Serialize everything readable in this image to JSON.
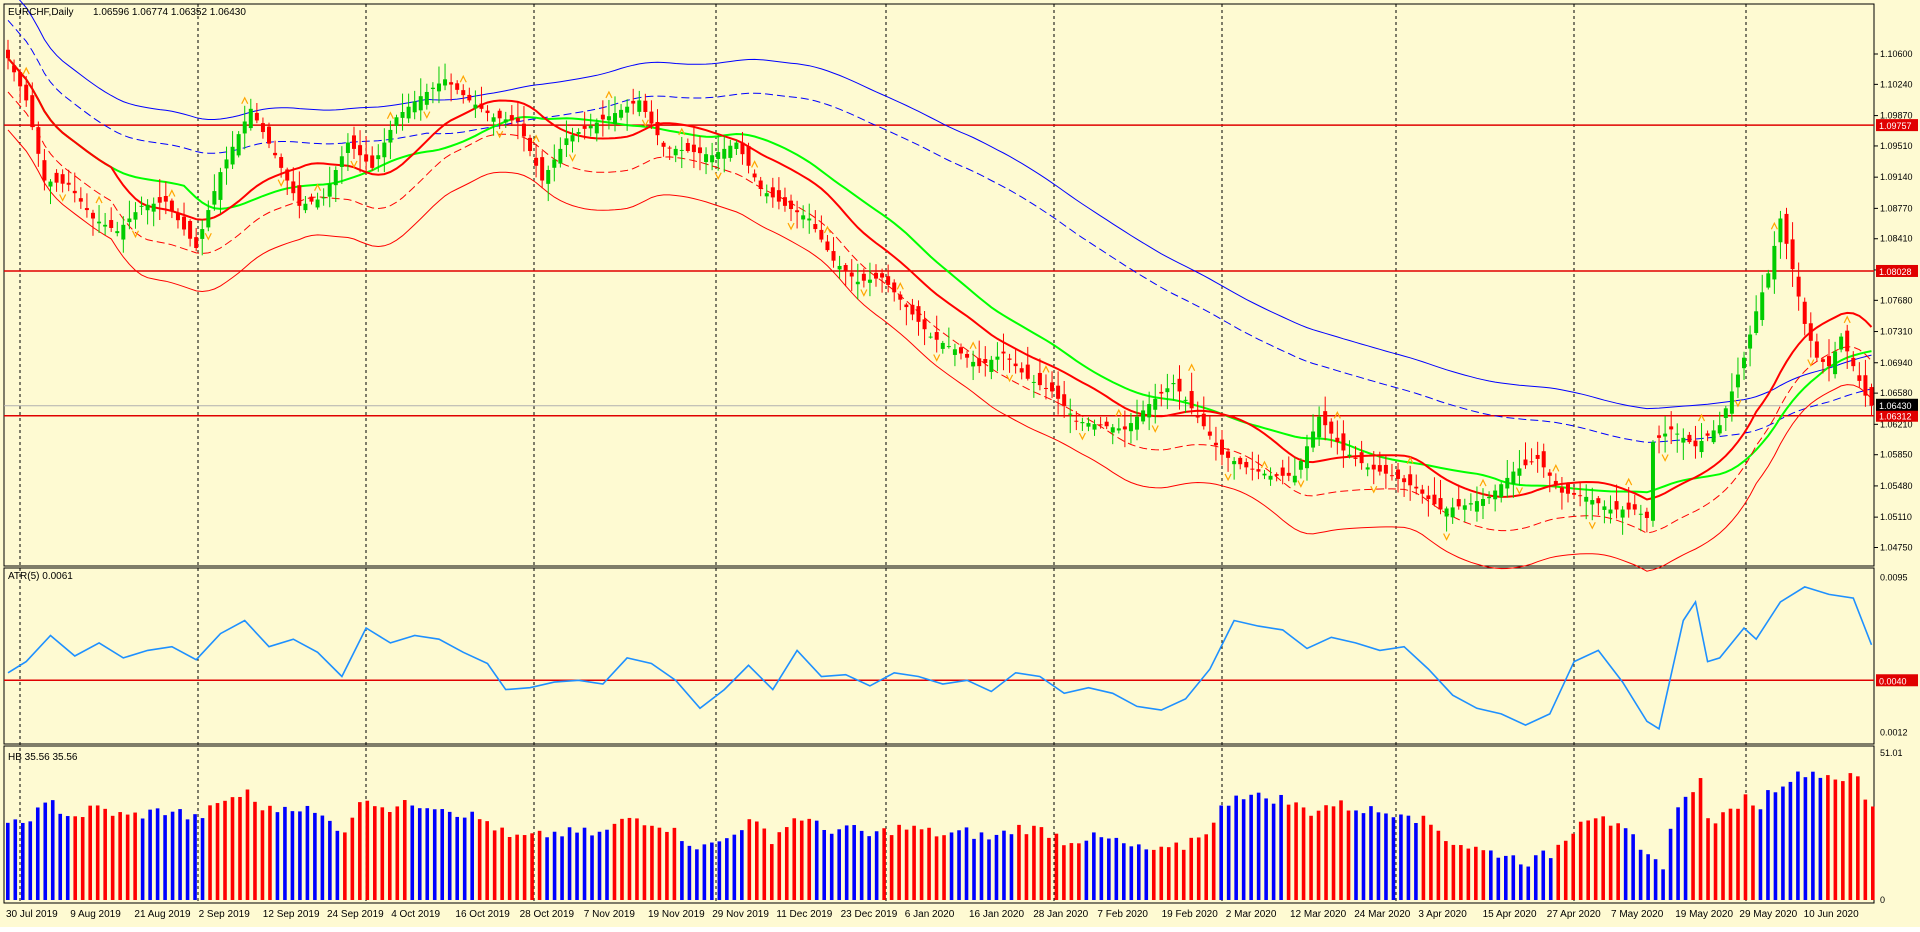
{
  "colors": {
    "background": "#fefad2",
    "frame": "#000000",
    "bull_candle": "#00cc00",
    "bear_candle": "#ff0000",
    "level_line": "#e00000",
    "ma_fast": "#00ff00",
    "ma_mid": "#ff0000",
    "ma_slow": "#0000ff",
    "atr_line": "#1e90ff",
    "hb_blue": "#0000ff",
    "hb_red": "#ff0000",
    "fractal_marker": "#ffa500",
    "price_label_bg": "#e00000"
  },
  "chart_data": [
    {
      "type": "candlestick",
      "title": "EURCHF,Daily",
      "ohlc_header": "1.06596 1.06774 1.06352 1.06430",
      "timeframe": "Daily",
      "current_price": "1.06430",
      "ylim": [
        1.0459,
        1.1092
      ],
      "y_ticks": [
        "1.10600",
        "1.10240",
        "1.09870",
        "1.09510",
        "1.09140",
        "1.08770",
        "1.08410",
        "1.08040",
        "1.07680",
        "1.07310",
        "1.06940",
        "1.06580",
        "1.06210",
        "1.05850",
        "1.05480",
        "1.05110",
        "1.04750"
      ],
      "horizontal_levels": [
        {
          "value": 1.09757,
          "label": "1.09757"
        },
        {
          "value": 1.08028,
          "label": "1.08028"
        },
        {
          "value": 1.06312,
          "label": "1.06312"
        }
      ],
      "x_labels": [
        "30 Jul 2019",
        "9 Aug 2019",
        "21 Aug 2019",
        "2 Sep 2019",
        "12 Sep 2019",
        "24 Sep 2019",
        "4 Oct 2019",
        "16 Oct 2019",
        "28 Oct 2019",
        "7 Nov 2019",
        "19 Nov 2019",
        "29 Nov 2019",
        "11 Dec 2019",
        "23 Dec 2019",
        "6 Jan 2020",
        "16 Jan 2020",
        "28 Jan 2020",
        "7 Feb 2020",
        "19 Feb 2020",
        "2 Mar 2020",
        "12 Mar 2020",
        "24 Mar 2020",
        "3 Apr 2020",
        "15 Apr 2020",
        "27 Apr 2020",
        "7 May 2020",
        "19 May 2020",
        "29 May 2020",
        "10 Jun 2020"
      ],
      "close_path": [
        [
          0,
          1.1055
        ],
        [
          3,
          1.1005
        ],
        [
          6,
          1.091
        ],
        [
          10,
          1.0905
        ],
        [
          14,
          1.0865
        ],
        [
          18,
          1.085
        ],
        [
          22,
          1.088
        ],
        [
          26,
          1.0885
        ],
        [
          31,
          1.083
        ],
        [
          35,
          1.092
        ],
        [
          40,
          1.0995
        ],
        [
          44,
          1.094
        ],
        [
          48,
          1.088
        ],
        [
          52,
          1.089
        ],
        [
          56,
          1.0955
        ],
        [
          60,
          1.0925
        ],
        [
          64,
          1.0985
        ],
        [
          68,
          1.101
        ],
        [
          72,
          1.103
        ],
        [
          76,
          1.1005
        ],
        [
          80,
          1.0985
        ],
        [
          84,
          1.098
        ],
        [
          88,
          1.091
        ],
        [
          92,
          1.096
        ],
        [
          96,
          1.0975
        ],
        [
          100,
          1.099
        ],
        [
          104,
          1.1005
        ],
        [
          108,
          1.095
        ],
        [
          112,
          1.0945
        ],
        [
          116,
          1.094
        ],
        [
          120,
          1.0955
        ],
        [
          124,
          1.09
        ],
        [
          128,
          1.088
        ],
        [
          132,
          1.0865
        ],
        [
          136,
          1.0815
        ],
        [
          140,
          1.079
        ],
        [
          144,
          1.0795
        ],
        [
          148,
          1.076
        ],
        [
          152,
          1.0725
        ],
        [
          156,
          1.071
        ],
        [
          160,
          1.069
        ],
        [
          164,
          1.0705
        ],
        [
          168,
          1.0675
        ],
        [
          172,
          1.066
        ],
        [
          176,
          1.0625
        ],
        [
          180,
          1.062
        ],
        [
          184,
          1.0615
        ],
        [
          188,
          1.0645
        ],
        [
          192,
          1.067
        ],
        [
          196,
          1.063
        ],
        [
          200,
          1.0585
        ],
        [
          204,
          1.057
        ],
        [
          208,
          1.056
        ],
        [
          212,
          1.056
        ],
        [
          216,
          1.063
        ],
        [
          220,
          1.059
        ],
        [
          224,
          1.057
        ],
        [
          228,
          1.056
        ],
        [
          232,
          1.0545
        ],
        [
          236,
          1.052
        ],
        [
          240,
          1.0525
        ],
        [
          244,
          1.0535
        ],
        [
          248,
          1.0565
        ],
        [
          252,
          1.058
        ],
        [
          256,
          1.054
        ],
        [
          260,
          1.0535
        ],
        [
          264,
          1.052
        ],
        [
          268,
          1.052
        ],
        [
          270,
          1.051
        ],
        [
          271,
          1.06
        ],
        [
          274,
          1.0615
        ],
        [
          278,
          1.0595
        ],
        [
          282,
          1.062
        ],
        [
          286,
          1.07
        ],
        [
          288,
          1.0755
        ],
        [
          290,
          1.08
        ],
        [
          292,
          1.0865
        ],
        [
          294,
          1.0805
        ],
        [
          296,
          1.074
        ],
        [
          298,
          1.07
        ],
        [
          300,
          1.069
        ],
        [
          302,
          1.0725
        ],
        [
          304,
          1.069
        ],
        [
          306,
          1.0655
        ],
        [
          307,
          1.0643
        ]
      ]
    },
    {
      "type": "line",
      "title": "ATR(5) 0.0061",
      "ylim": [
        0.0008,
        0.0098
      ],
      "y_ticks": [
        "0.0095",
        "0.0012"
      ],
      "horizontal_levels": [
        {
          "value": 0.004,
          "label": "0.0040"
        }
      ],
      "path": [
        [
          0,
          0.0044
        ],
        [
          3,
          0.005
        ],
        [
          7,
          0.0064
        ],
        [
          11,
          0.0053
        ],
        [
          15,
          0.006
        ],
        [
          19,
          0.0052
        ],
        [
          23,
          0.0056
        ],
        [
          27,
          0.0058
        ],
        [
          31,
          0.0051
        ],
        [
          35,
          0.0065
        ],
        [
          39,
          0.0072
        ],
        [
          43,
          0.0058
        ],
        [
          47,
          0.0062
        ],
        [
          51,
          0.0055
        ],
        [
          55,
          0.0042
        ],
        [
          59,
          0.0068
        ],
        [
          63,
          0.006
        ],
        [
          67,
          0.0064
        ],
        [
          71,
          0.0062
        ],
        [
          75,
          0.0055
        ],
        [
          79,
          0.0049
        ],
        [
          82,
          0.0035
        ],
        [
          86,
          0.0036
        ],
        [
          90,
          0.0039
        ],
        [
          94,
          0.004
        ],
        [
          98,
          0.0038
        ],
        [
          102,
          0.0052
        ],
        [
          106,
          0.0049
        ],
        [
          110,
          0.004
        ],
        [
          114,
          0.0025
        ],
        [
          118,
          0.0035
        ],
        [
          122,
          0.0048
        ],
        [
          126,
          0.0035
        ],
        [
          130,
          0.0056
        ],
        [
          134,
          0.0042
        ],
        [
          138,
          0.0043
        ],
        [
          142,
          0.0037
        ],
        [
          146,
          0.0044
        ],
        [
          150,
          0.0042
        ],
        [
          154,
          0.0038
        ],
        [
          158,
          0.004
        ],
        [
          162,
          0.0034
        ],
        [
          166,
          0.0044
        ],
        [
          170,
          0.0042
        ],
        [
          174,
          0.0033
        ],
        [
          178,
          0.0036
        ],
        [
          182,
          0.0033
        ],
        [
          186,
          0.0026
        ],
        [
          190,
          0.0024
        ],
        [
          194,
          0.003
        ],
        [
          198,
          0.0046
        ],
        [
          202,
          0.0072
        ],
        [
          206,
          0.0069
        ],
        [
          210,
          0.0067
        ],
        [
          214,
          0.0057
        ],
        [
          218,
          0.0063
        ],
        [
          222,
          0.006
        ],
        [
          226,
          0.0056
        ],
        [
          230,
          0.0058
        ],
        [
          234,
          0.0046
        ],
        [
          238,
          0.0032
        ],
        [
          242,
          0.0025
        ],
        [
          246,
          0.0022
        ],
        [
          250,
          0.0016
        ],
        [
          254,
          0.0022
        ],
        [
          258,
          0.005
        ],
        [
          262,
          0.0056
        ],
        [
          266,
          0.0039
        ],
        [
          270,
          0.0018
        ],
        [
          272,
          0.0014
        ],
        [
          276,
          0.0072
        ],
        [
          278,
          0.0082
        ],
        [
          280,
          0.005
        ],
        [
          282,
          0.0052
        ],
        [
          286,
          0.0068
        ],
        [
          288,
          0.0062
        ],
        [
          292,
          0.0082
        ],
        [
          296,
          0.009
        ],
        [
          300,
          0.0086
        ],
        [
          304,
          0.0084
        ],
        [
          307,
          0.0059
        ]
      ]
    },
    {
      "type": "bar",
      "title": "HB 35.56 35.56",
      "ylim": [
        0,
        51.01
      ],
      "y_ticks": [
        "51.01",
        "0"
      ]
    }
  ],
  "price_tags": {
    "current": "1.06430",
    "levels": [
      "1.09757",
      "1.08028",
      "1.06312"
    ],
    "atr_level": "0.0040"
  }
}
